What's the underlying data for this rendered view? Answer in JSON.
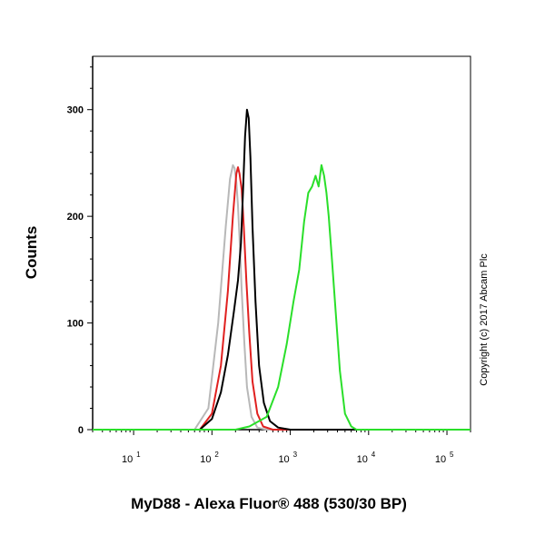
{
  "chart_data": {
    "type": "line",
    "title": "",
    "xlabel": "MyD88 - Alexa Fluor® 488 (530/30 BP)",
    "ylabel": "Counts",
    "x_scale": "log",
    "xlim": [
      3,
      200000
    ],
    "ylim": [
      0,
      350
    ],
    "y_ticks": [
      "0",
      "100",
      "200",
      "300"
    ],
    "x_ticks": [
      {
        "base": "10",
        "exp": "1"
      },
      {
        "base": "10",
        "exp": "2"
      },
      {
        "base": "10",
        "exp": "3"
      },
      {
        "base": "10",
        "exp": "4"
      },
      {
        "base": "10",
        "exp": "5"
      }
    ],
    "grid": false,
    "annotation": "Copyright (c) 2017 Abcam Plc",
    "series": [
      {
        "color": "#b8b8b8",
        "x": [
          3,
          60,
          90,
          120,
          150,
          170,
          185,
          195,
          205,
          215,
          225,
          240,
          260,
          280,
          320,
          380,
          500,
          200000
        ],
        "y": [
          0,
          0,
          20,
          100,
          190,
          235,
          248,
          245,
          232,
          210,
          180,
          130,
          80,
          40,
          12,
          2,
          0,
          0
        ]
      },
      {
        "color": "#e0201f",
        "x": [
          3,
          70,
          100,
          130,
          160,
          185,
          205,
          215,
          225,
          240,
          255,
          275,
          300,
          330,
          380,
          450,
          600,
          200000
        ],
        "y": [
          0,
          0,
          15,
          60,
          130,
          200,
          240,
          246,
          240,
          225,
          190,
          140,
          90,
          45,
          15,
          3,
          0,
          0
        ]
      },
      {
        "color": "#000000",
        "x": [
          3,
          70,
          100,
          130,
          160,
          190,
          215,
          235,
          250,
          265,
          280,
          295,
          310,
          330,
          360,
          400,
          460,
          550,
          700,
          1000,
          200000
        ],
        "y": [
          0,
          0,
          10,
          35,
          70,
          110,
          140,
          175,
          225,
          275,
          300,
          292,
          255,
          190,
          120,
          60,
          25,
          8,
          2,
          0,
          0
        ]
      },
      {
        "color": "#2adf2a",
        "x": [
          3,
          200,
          300,
          500,
          700,
          900,
          1100,
          1300,
          1500,
          1700,
          1900,
          2100,
          2300,
          2500,
          2700,
          2900,
          3100,
          3400,
          3800,
          4300,
          5000,
          6000,
          7000,
          200000
        ],
        "y": [
          0,
          0,
          3,
          12,
          40,
          80,
          120,
          150,
          195,
          222,
          228,
          238,
          228,
          248,
          238,
          222,
          200,
          160,
          110,
          55,
          15,
          3,
          0,
          0
        ]
      }
    ]
  }
}
